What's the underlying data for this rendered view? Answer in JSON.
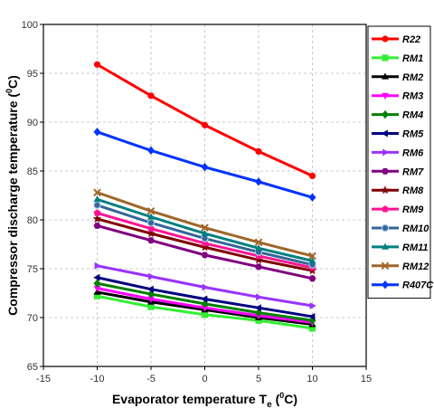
{
  "chart_data": {
    "type": "line",
    "xlabel_main": "Evaporator temperature T",
    "xlabel_sub": "e",
    "xlabel_open": " (",
    "xlabel_sup": "0",
    "xlabel_close": "C)",
    "ylabel_main": "Compressor discharge temperature (",
    "ylabel_sup": "0",
    "ylabel_close": "C)",
    "xlim": [
      -15,
      15
    ],
    "ylim": [
      65,
      100
    ],
    "xticks": [
      -15,
      -10,
      -5,
      0,
      5,
      10,
      15
    ],
    "yticks": [
      65,
      70,
      75,
      80,
      85,
      90,
      95,
      100
    ],
    "grid": true,
    "legend_position": "right",
    "x": [
      -10,
      -5,
      0,
      5,
      10
    ],
    "series": [
      {
        "name": "R22",
        "color": "#ff0000",
        "marker": "circle",
        "values": [
          95.9,
          92.7,
          89.7,
          87.0,
          84.5
        ]
      },
      {
        "name": "RM1",
        "color": "#33ee33",
        "marker": "square",
        "values": [
          72.2,
          71.1,
          70.3,
          69.7,
          68.9
        ]
      },
      {
        "name": "RM2",
        "color": "#000000",
        "marker": "triangle-up",
        "values": [
          72.6,
          71.6,
          70.8,
          70.0,
          69.3
        ]
      },
      {
        "name": "RM3",
        "color": "#ff00ff",
        "marker": "triangle-down",
        "values": [
          73.0,
          71.9,
          71.0,
          70.2,
          69.5
        ]
      },
      {
        "name": "RM4",
        "color": "#008000",
        "marker": "diamond",
        "values": [
          73.5,
          72.4,
          71.4,
          70.5,
          69.7
        ]
      },
      {
        "name": "RM5",
        "color": "#000080",
        "marker": "triangle-left",
        "values": [
          74.1,
          72.9,
          71.9,
          71.0,
          70.1
        ]
      },
      {
        "name": "RM6",
        "color": "#9933ff",
        "marker": "triangle-right",
        "values": [
          75.3,
          74.2,
          73.1,
          72.1,
          71.2
        ]
      },
      {
        "name": "RM7",
        "color": "#800080",
        "marker": "hexagon",
        "values": [
          79.4,
          77.9,
          76.4,
          75.2,
          74.0
        ]
      },
      {
        "name": "RM8",
        "color": "#800000",
        "marker": "star",
        "values": [
          80.1,
          78.6,
          77.2,
          75.9,
          74.8
        ]
      },
      {
        "name": "RM9",
        "color": "#ff1493",
        "marker": "pentagon",
        "values": [
          80.7,
          79.1,
          77.6,
          76.3,
          75.1
        ]
      },
      {
        "name": "RM10",
        "color": "#336699",
        "marker": "circle-half",
        "values": [
          81.5,
          79.7,
          78.1,
          76.7,
          75.4
        ]
      },
      {
        "name": "RM11",
        "color": "#008080",
        "marker": "triangle-up-dot",
        "values": [
          82.1,
          80.3,
          78.6,
          77.1,
          75.8
        ]
      },
      {
        "name": "RM12",
        "color": "#a0652a",
        "marker": "x",
        "values": [
          82.8,
          80.9,
          79.2,
          77.7,
          76.3
        ]
      },
      {
        "name": "R407C",
        "color": "#0033ff",
        "marker": "diamond",
        "values": [
          89.0,
          87.1,
          85.4,
          83.9,
          82.3
        ]
      }
    ]
  }
}
